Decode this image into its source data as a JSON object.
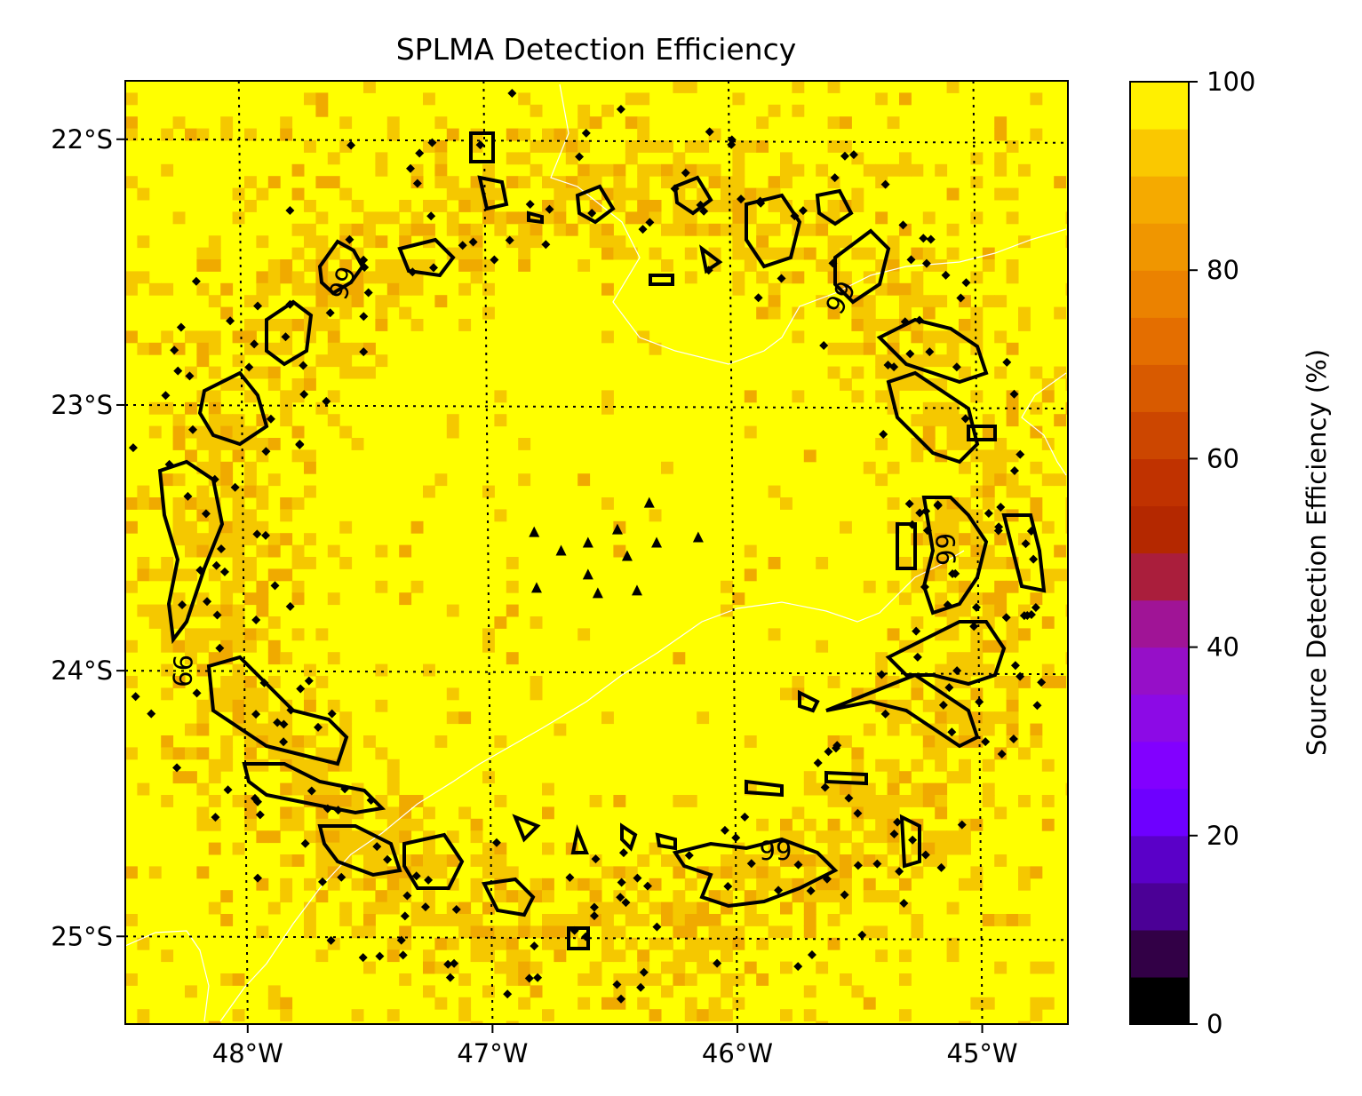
{
  "title": "SPLMA Detection Efficiency",
  "colorbar": {
    "label": "Source Detection Efficiency (%)",
    "ticks": [
      "0",
      "20",
      "40",
      "60",
      "80",
      "100"
    ],
    "range": [
      0,
      100
    ],
    "colors": [
      "#000000",
      "#320046",
      "#4b0096",
      "#5a00c8",
      "#6e00ff",
      "#8200ff",
      "#8c0ae6",
      "#960fc8",
      "#a01496",
      "#aa1e3c",
      "#b42800",
      "#c03200",
      "#cc4600",
      "#d85a00",
      "#e46e00",
      "#eb8200",
      "#f09600",
      "#f5aa00",
      "#fac800",
      "#fff000"
    ]
  },
  "map": {
    "lon_range": [
      -48.5,
      -44.65
    ],
    "lat_range": [
      -25.33,
      -21.78
    ],
    "x_ticks": [
      "48°W",
      "47°W",
      "46°W",
      "45°W"
    ],
    "y_ticks": [
      "22°S",
      "23°S",
      "24°S",
      "25°S"
    ],
    "background_color": "#ffff00",
    "dim_color": "#f5c800",
    "contour_level": 99,
    "contour_labels": [
      "99",
      "99",
      "99",
      "99",
      "99"
    ]
  },
  "stations": [
    {
      "lon": -46.83,
      "lat": -23.48
    },
    {
      "lon": -46.72,
      "lat": -23.55
    },
    {
      "lon": -46.61,
      "lat": -23.52
    },
    {
      "lon": -46.49,
      "lat": -23.47
    },
    {
      "lon": -46.36,
      "lat": -23.37
    },
    {
      "lon": -46.33,
      "lat": -23.52
    },
    {
      "lon": -46.16,
      "lat": -23.5
    },
    {
      "lon": -46.45,
      "lat": -23.57
    },
    {
      "lon": -46.61,
      "lat": -23.64
    },
    {
      "lon": -46.82,
      "lat": -23.69
    },
    {
      "lon": -46.57,
      "lat": -23.71
    },
    {
      "lon": -46.41,
      "lat": -23.7
    }
  ]
}
